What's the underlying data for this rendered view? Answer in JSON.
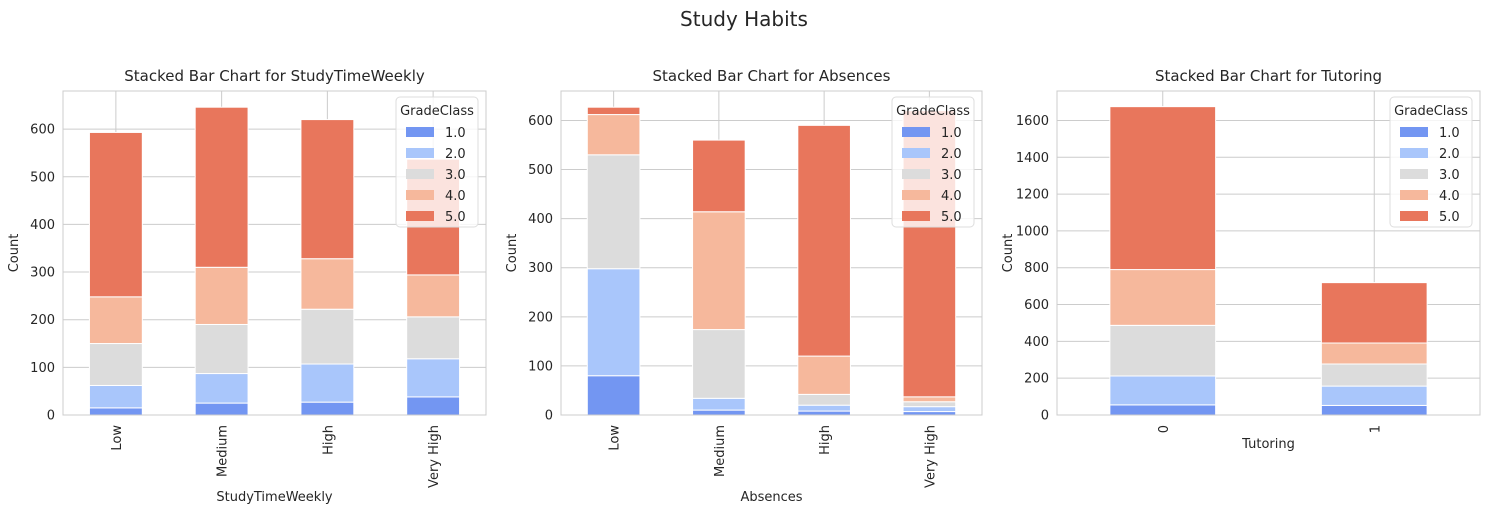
{
  "figure_title": "Study Habits",
  "colors": {
    "1.0": "#7396f2",
    "2.0": "#a9c6fb",
    "3.0": "#dcdcdc",
    "4.0": "#f6b89c",
    "5.0": "#e8765c",
    "grid": "#cccccc",
    "axes_edge": "#cccccc",
    "text": "#262626"
  },
  "chart_data": [
    {
      "type": "bar",
      "stacked": true,
      "title": "Stacked Bar Chart for StudyTimeWeekly",
      "xlabel": "StudyTimeWeekly",
      "ylabel": "Count",
      "categories": [
        "Low",
        "Medium",
        "High",
        "Very High"
      ],
      "ylim": [
        0,
        680
      ],
      "yticks": [
        0,
        100,
        200,
        300,
        400,
        500,
        600
      ],
      "grid": true,
      "legend": {
        "title": "GradeClass",
        "placement": "top-right"
      },
      "series": [
        {
          "name": "1.0",
          "values": [
            15,
            25,
            27,
            38
          ]
        },
        {
          "name": "2.0",
          "values": [
            47,
            62,
            80,
            80
          ]
        },
        {
          "name": "3.0",
          "values": [
            88,
            103,
            115,
            88
          ]
        },
        {
          "name": "4.0",
          "values": [
            98,
            120,
            106,
            88
          ]
        },
        {
          "name": "5.0",
          "values": [
            345,
            336,
            292,
            243
          ]
        }
      ]
    },
    {
      "type": "bar",
      "stacked": true,
      "title": "Stacked Bar Chart for Absences",
      "xlabel": "Absences",
      "ylabel": "Count",
      "categories": [
        "Low",
        "Medium",
        "High",
        "Very High"
      ],
      "ylim": [
        0,
        660
      ],
      "yticks": [
        0,
        100,
        200,
        300,
        400,
        500,
        600
      ],
      "grid": true,
      "legend": {
        "title": "GradeClass",
        "placement": "top-right"
      },
      "series": [
        {
          "name": "1.0",
          "values": [
            80,
            10,
            8,
            7
          ]
        },
        {
          "name": "2.0",
          "values": [
            218,
            24,
            12,
            10
          ]
        },
        {
          "name": "3.0",
          "values": [
            232,
            140,
            22,
            10
          ]
        },
        {
          "name": "4.0",
          "values": [
            82,
            240,
            78,
            10
          ]
        },
        {
          "name": "5.0",
          "values": [
            15,
            146,
            470,
            583
          ]
        }
      ]
    },
    {
      "type": "bar",
      "stacked": true,
      "title": "Stacked Bar Chart for Tutoring",
      "xlabel": "Tutoring",
      "ylabel": "Count",
      "categories": [
        "0",
        "1"
      ],
      "ylim": [
        0,
        1760
      ],
      "yticks": [
        0,
        200,
        400,
        600,
        800,
        1000,
        1200,
        1400,
        1600
      ],
      "grid": true,
      "legend": {
        "title": "GradeClass",
        "placement": "top-right"
      },
      "series": [
        {
          "name": "1.0",
          "values": [
            55,
            52
          ]
        },
        {
          "name": "2.0",
          "values": [
            157,
            105
          ]
        },
        {
          "name": "3.0",
          "values": [
            275,
            120
          ]
        },
        {
          "name": "4.0",
          "values": [
            303,
            114
          ]
        },
        {
          "name": "5.0",
          "values": [
            885,
            328
          ]
        }
      ]
    }
  ]
}
